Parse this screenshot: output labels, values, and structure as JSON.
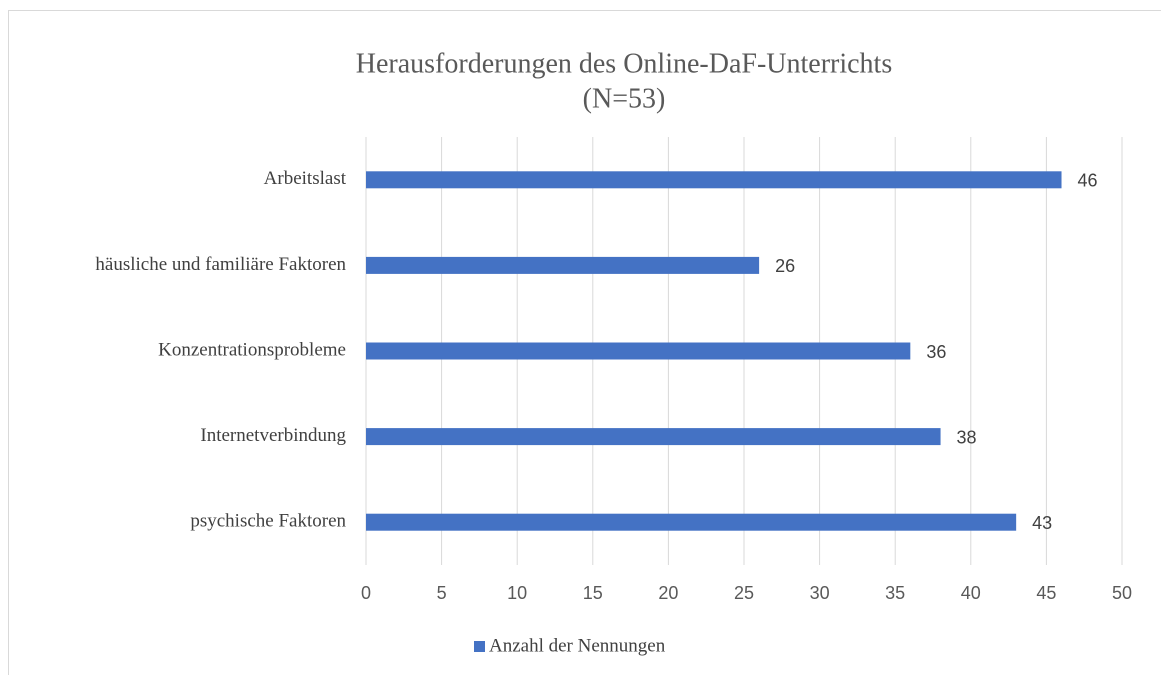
{
  "chart_data": {
    "type": "bar",
    "orientation": "horizontal",
    "title": "Herausforderungen des Online-DaF-Unterrichts",
    "subtitle": "(N=53)",
    "categories": [
      "Arbeitslast",
      "häusliche und familiäre Faktoren",
      "Konzentrationsprobleme",
      "Internetverbindung",
      "psychische Faktoren"
    ],
    "series": [
      {
        "name": "Anzahl der Nennungen",
        "color": "#4472c4",
        "values": [
          46,
          26,
          36,
          38,
          43
        ]
      }
    ],
    "xlim": [
      0,
      50
    ],
    "xticks": [
      0,
      5,
      10,
      15,
      20,
      25,
      30,
      35,
      40,
      45,
      50
    ],
    "grid": true,
    "legend": "bottom",
    "data_labels": true
  }
}
